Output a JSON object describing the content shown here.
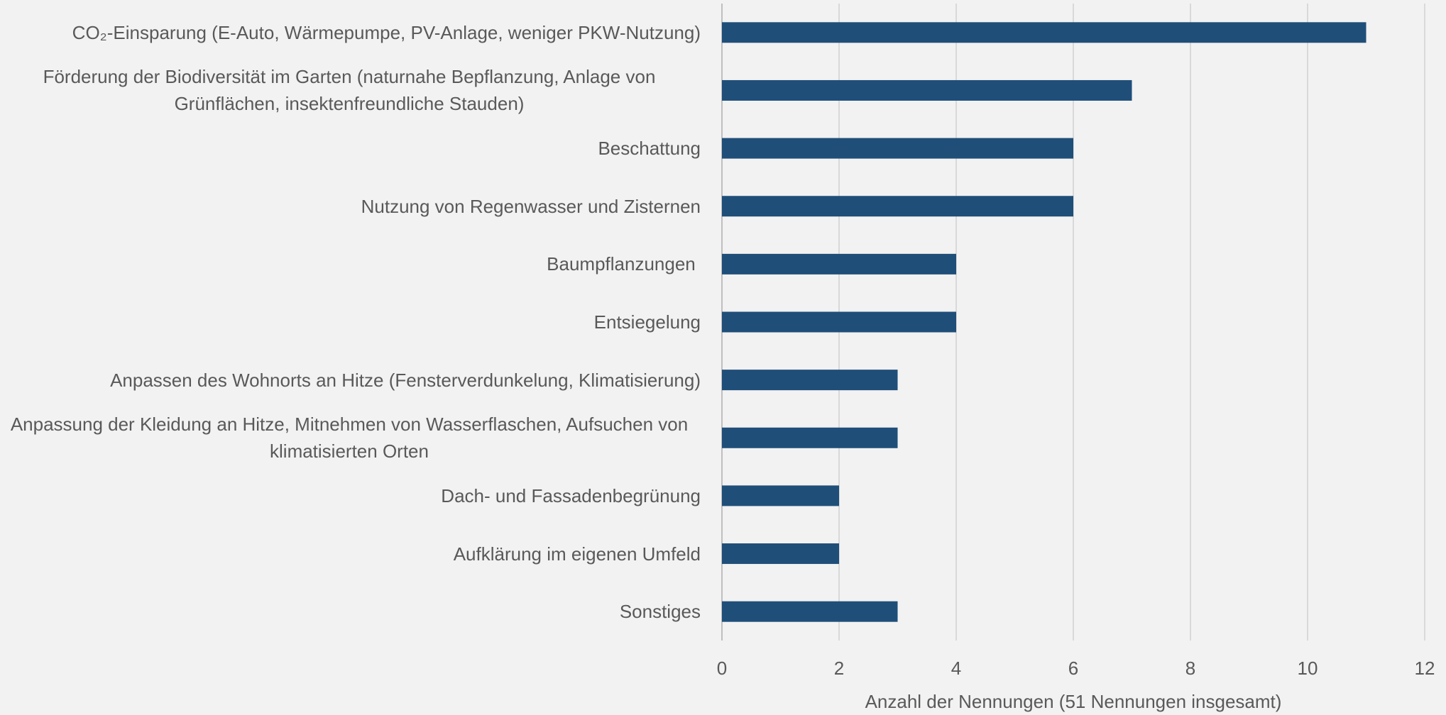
{
  "chart_data": {
    "type": "barh",
    "categories": [
      "CO₂-Einsparung (E-Auto, Wärmepumpe, PV-Anlage, weniger PKW-Nutzung)",
      "Förderung der Biodiversität im Garten (naturnahe Bepflanzung, Anlage von Grünflächen, insektenfreundliche Stauden)",
      "Beschattung",
      "Nutzung von Regenwasser und Zisternen",
      "Baumpflanzungen ",
      "Entsiegelung",
      "Anpassen des Wohnorts an Hitze (Fensterverdunkelung, Klimatisierung)",
      "Anpassung der Kleidung an Hitze, Mitnehmen von Wasserflaschen, Aufsuchen von klimatisierten Orten",
      "Dach- und Fassadenbegrünung",
      "Aufklärung im eigenen Umfeld",
      "Sonstiges"
    ],
    "values": [
      11,
      7,
      6,
      6,
      4,
      4,
      3,
      3,
      2,
      2,
      3
    ],
    "color": "#1f4e79",
    "xlabel": "Anzahl der Nennungen (51 Nennungen insgesamt)",
    "xlim": [
      0,
      12
    ],
    "xticks": [
      0,
      2,
      4,
      6,
      8,
      10,
      12
    ],
    "grid": true
  }
}
